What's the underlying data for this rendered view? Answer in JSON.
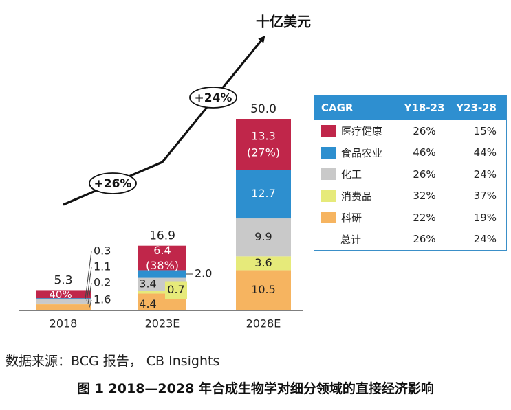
{
  "chart_data": {
    "type": "bar",
    "stacked": true,
    "unit_label": "十亿美元",
    "categories": [
      "2018",
      "2023E",
      "2028E"
    ],
    "totals": [
      5.3,
      16.9,
      50.0
    ],
    "series": [
      {
        "name": "科研",
        "color": "#f6b460",
        "values": [
          1.6,
          4.4,
          10.5
        ]
      },
      {
        "name": "消费品",
        "color": "#e6ea7a",
        "values": [
          0.2,
          0.7,
          3.6
        ]
      },
      {
        "name": "化工",
        "color": "#c9c9c9",
        "values": [
          1.1,
          3.4,
          9.9
        ]
      },
      {
        "name": "食品农业",
        "color": "#2d8fcf",
        "values": [
          0.3,
          2.0,
          12.7
        ]
      },
      {
        "name": "医疗健康",
        "color": "#c0264a",
        "values": [
          2.1,
          6.4,
          13.3
        ]
      }
    ],
    "share_labels": {
      "2018": "40%",
      "2023E": "(38%)",
      "2028E": "(27%)"
    },
    "growth_annotations": [
      "+26%",
      "+24%"
    ],
    "cagr_table": {
      "headers": [
        "CAGR",
        "Y18-23",
        "Y23-28"
      ],
      "rows": [
        {
          "name": "医疗健康",
          "color": "#c0264a",
          "y18_23": "26%",
          "y23_28": "15%"
        },
        {
          "name": "食品农业",
          "color": "#2d8fcf",
          "y18_23": "46%",
          "y23_28": "44%"
        },
        {
          "name": "化工",
          "color": "#c9c9c9",
          "y18_23": "26%",
          "y23_28": "24%"
        },
        {
          "name": "消费品",
          "color": "#e6ea7a",
          "y18_23": "32%",
          "y23_28": "37%"
        },
        {
          "name": "科研",
          "color": "#f6b460",
          "y18_23": "22%",
          "y23_28": "19%"
        }
      ],
      "total": {
        "name": "总计",
        "y18_23": "26%",
        "y23_28": "24%"
      }
    }
  },
  "source_text": "数据来源：BCG 报告， CB Insights",
  "caption": "图 1 2018—2028 年合成生物学对细分领域的直接经济影响"
}
